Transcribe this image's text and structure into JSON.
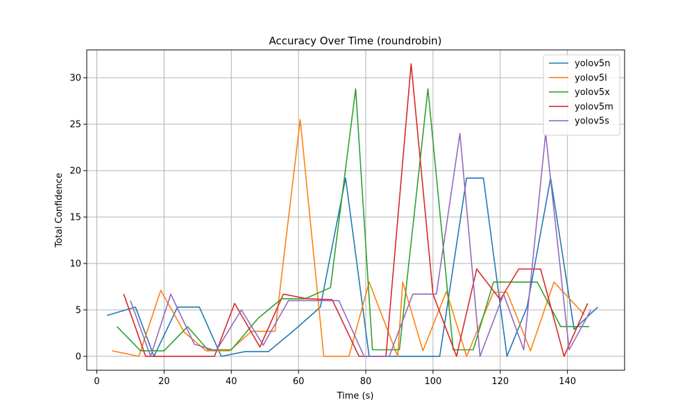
{
  "chart_data": {
    "type": "line",
    "title": "Accuracy Over Time (roundrobin)",
    "xlabel": "Time (s)",
    "ylabel": "Total Confidence",
    "xlim": [
      -3,
      157
    ],
    "ylim": [
      -1.5,
      33
    ],
    "xticks": [
      0,
      20,
      40,
      60,
      80,
      100,
      120,
      140
    ],
    "yticks": [
      0,
      5,
      10,
      15,
      20,
      25,
      30
    ],
    "grid": true,
    "legend_position": "top-right",
    "series": [
      {
        "name": "yolov5n",
        "color": "#1f77b4",
        "points": [
          [
            3,
            4.4
          ],
          [
            11.5,
            5.3
          ],
          [
            17,
            0
          ],
          [
            24,
            5.3
          ],
          [
            30.5,
            5.3
          ],
          [
            37,
            0
          ],
          [
            44,
            0.5
          ],
          [
            51,
            0.5
          ],
          [
            59,
            2.9
          ],
          [
            66.5,
            5.3
          ],
          [
            74,
            19.2
          ],
          [
            81,
            0
          ],
          [
            88,
            0
          ],
          [
            95,
            0
          ],
          [
            102,
            0
          ],
          [
            110,
            19.2
          ],
          [
            115,
            19.2
          ],
          [
            122,
            0
          ],
          [
            128,
            5.3
          ],
          [
            135,
            19.2
          ],
          [
            142,
            2.9
          ],
          [
            149,
            5.3
          ]
        ]
      },
      {
        "name": "yolov5l",
        "color": "#ff7f0e",
        "points": [
          [
            4.5,
            0.6
          ],
          [
            12.5,
            0
          ],
          [
            19,
            7.1
          ],
          [
            26,
            2.6
          ],
          [
            32.5,
            0.6
          ],
          [
            39.5,
            0.6
          ],
          [
            46,
            2.7
          ],
          [
            53,
            2.7
          ],
          [
            60.5,
            25.5
          ],
          [
            67.5,
            0
          ],
          [
            75,
            0
          ],
          [
            81,
            8
          ],
          [
            89.5,
            0
          ],
          [
            91,
            8
          ],
          [
            97,
            0.6
          ],
          [
            104,
            7
          ],
          [
            110,
            0
          ],
          [
            118,
            6.9
          ],
          [
            122,
            6.9
          ],
          [
            129,
            0.6
          ],
          [
            136,
            8
          ],
          [
            145,
            4.5
          ]
        ]
      },
      {
        "name": "yolov5x",
        "color": "#2ca02c",
        "points": [
          [
            6,
            3.2
          ],
          [
            13,
            0.6
          ],
          [
            20,
            0.6
          ],
          [
            27,
            3.2
          ],
          [
            33,
            0.7
          ],
          [
            40,
            0.7
          ],
          [
            48,
            4.1
          ],
          [
            55,
            6.2
          ],
          [
            62,
            6.2
          ],
          [
            69.5,
            7.4
          ],
          [
            77,
            28.8
          ],
          [
            82,
            0.7
          ],
          [
            90,
            0.7
          ],
          [
            98.5,
            28.8
          ],
          [
            106,
            0.7
          ],
          [
            112,
            0.7
          ],
          [
            118,
            8
          ],
          [
            124,
            8
          ],
          [
            131,
            8
          ],
          [
            138,
            3.2
          ],
          [
            146.5,
            3.2
          ]
        ]
      },
      {
        "name": "yolov5m",
        "color": "#d62728",
        "points": [
          [
            8,
            6.7
          ],
          [
            14.5,
            0
          ],
          [
            22,
            0
          ],
          [
            28,
            0
          ],
          [
            35,
            0
          ],
          [
            41,
            5.7
          ],
          [
            48.5,
            1
          ],
          [
            55.5,
            6.7
          ],
          [
            62.5,
            6.2
          ],
          [
            70,
            6.1
          ],
          [
            78,
            0
          ],
          [
            86,
            0
          ],
          [
            93.5,
            31.5
          ],
          [
            100,
            6.7
          ],
          [
            107,
            0
          ],
          [
            113,
            9.4
          ],
          [
            120,
            6.1
          ],
          [
            125.5,
            9.4
          ],
          [
            132,
            9.4
          ],
          [
            139,
            0
          ],
          [
            146,
            5.7
          ]
        ]
      },
      {
        "name": "yolov5s",
        "color": "#9467bd",
        "points": [
          [
            10,
            6
          ],
          [
            16,
            0
          ],
          [
            22,
            6.7
          ],
          [
            29,
            1.3
          ],
          [
            35.5,
            0.6
          ],
          [
            43,
            5
          ],
          [
            49.5,
            1.2
          ],
          [
            57,
            6
          ],
          [
            64,
            6
          ],
          [
            72,
            6
          ],
          [
            79.5,
            0
          ],
          [
            87,
            0
          ],
          [
            94,
            6.7
          ],
          [
            101,
            6.7
          ],
          [
            108,
            24
          ],
          [
            114,
            0
          ],
          [
            121,
            6.7
          ],
          [
            127,
            0.7
          ],
          [
            133.5,
            24
          ],
          [
            140.5,
            0.7
          ],
          [
            147,
            5
          ]
        ]
      }
    ]
  }
}
